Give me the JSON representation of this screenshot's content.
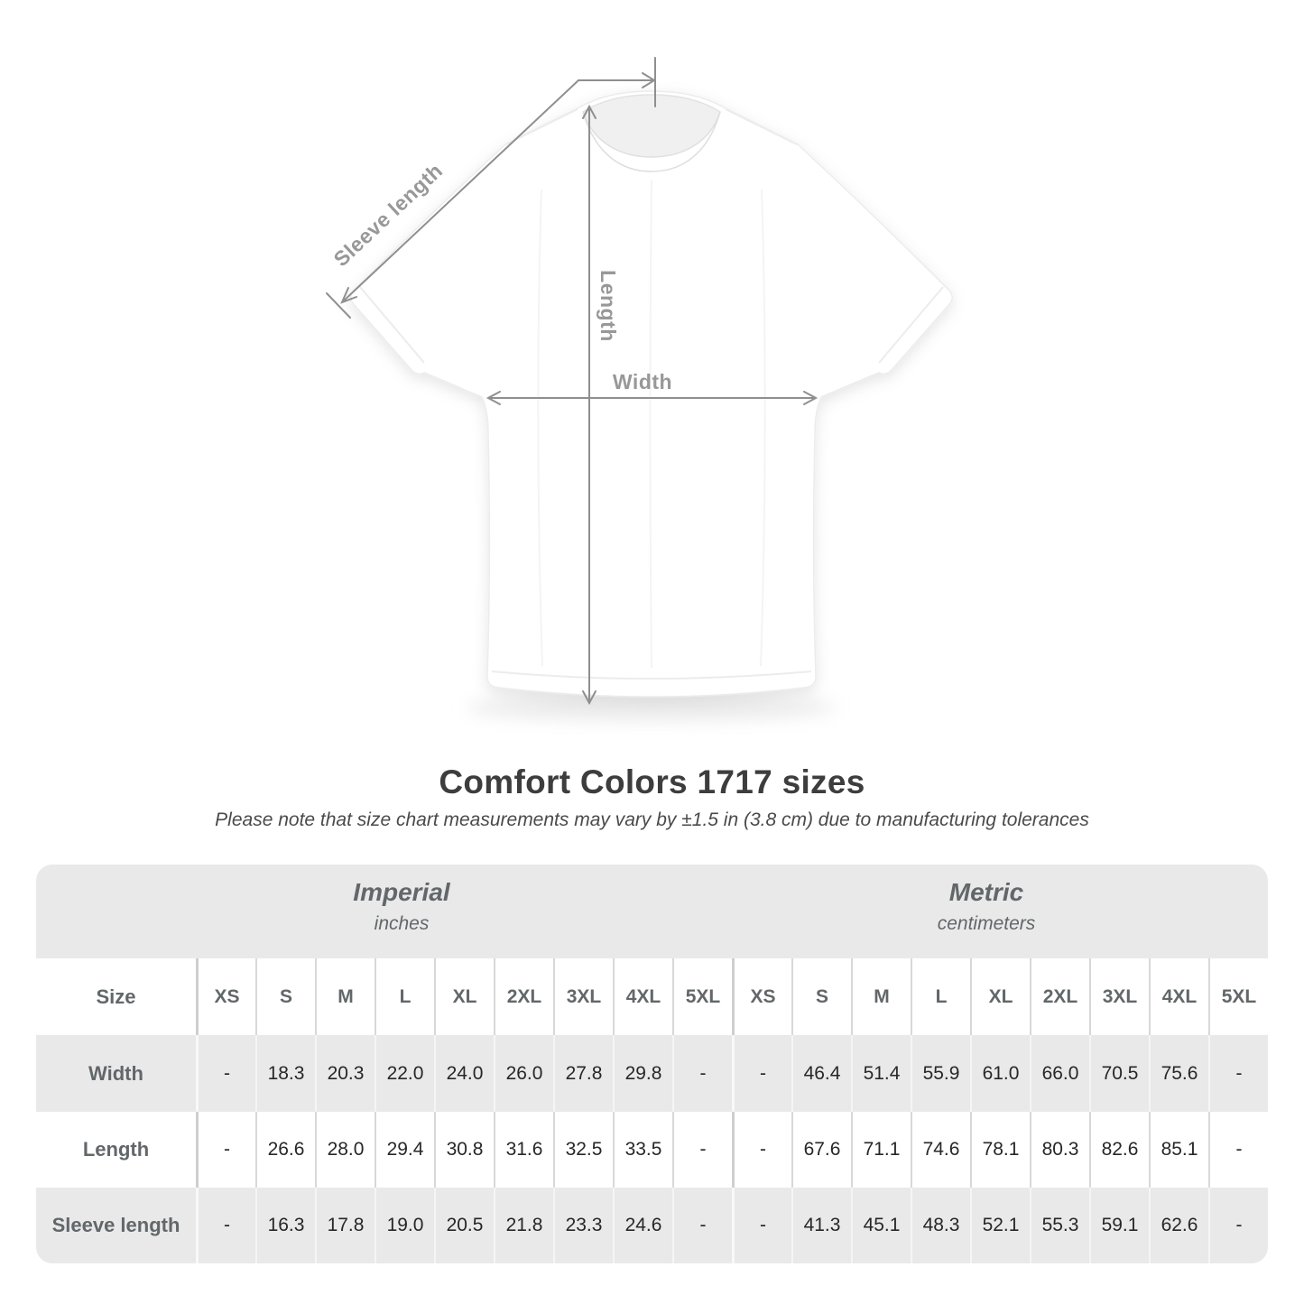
{
  "title": "Comfort Colors 1717 sizes",
  "subtitle": "Please note that size chart measurements may vary by ±1.5 in (3.8 cm) due to manufacturing tolerances",
  "diagram": {
    "sleeve_label": "Sleeve length",
    "length_label": "Length",
    "width_label": "Width"
  },
  "table": {
    "size_header": "Size",
    "unit_groups": [
      {
        "name": "Imperial",
        "unit": "inches"
      },
      {
        "name": "Metric",
        "unit": "centimeters"
      }
    ]
  },
  "colors": {
    "band_bg": "#e9e9e9",
    "row_alt_bg": "#e9e9e9",
    "header_text": "#62676a",
    "value_text": "#272727",
    "title_text": "#3d3d3d",
    "measure_line": "#8f8f8f",
    "measure_label": "#989898"
  },
  "chart_data": {
    "type": "table",
    "title": "Comfort Colors 1717 sizes",
    "note": "Please note that size chart measurements may vary by ±1.5 in (3.8 cm) due to manufacturing tolerances",
    "unit_groups": [
      "Imperial (inches)",
      "Metric (centimeters)"
    ],
    "sizes": [
      "XS",
      "S",
      "M",
      "L",
      "XL",
      "2XL",
      "3XL",
      "4XL",
      "5XL"
    ],
    "measurements": [
      {
        "name": "Width",
        "imperial_in": [
          "-",
          "18.3",
          "20.3",
          "22.0",
          "24.0",
          "26.0",
          "27.8",
          "29.8",
          "-"
        ],
        "metric_cm": [
          "-",
          "46.4",
          "51.4",
          "55.9",
          "61.0",
          "66.0",
          "70.5",
          "75.6",
          "-"
        ]
      },
      {
        "name": "Length",
        "imperial_in": [
          "-",
          "26.6",
          "28.0",
          "29.4",
          "30.8",
          "31.6",
          "32.5",
          "33.5",
          "-"
        ],
        "metric_cm": [
          "-",
          "67.6",
          "71.1",
          "74.6",
          "78.1",
          "80.3",
          "82.6",
          "85.1",
          "-"
        ]
      },
      {
        "name": "Sleeve length",
        "imperial_in": [
          "-",
          "16.3",
          "17.8",
          "19.0",
          "20.5",
          "21.8",
          "23.3",
          "24.6",
          "-"
        ],
        "metric_cm": [
          "-",
          "41.3",
          "45.1",
          "48.3",
          "52.1",
          "55.3",
          "59.1",
          "62.6",
          "-"
        ]
      }
    ]
  }
}
